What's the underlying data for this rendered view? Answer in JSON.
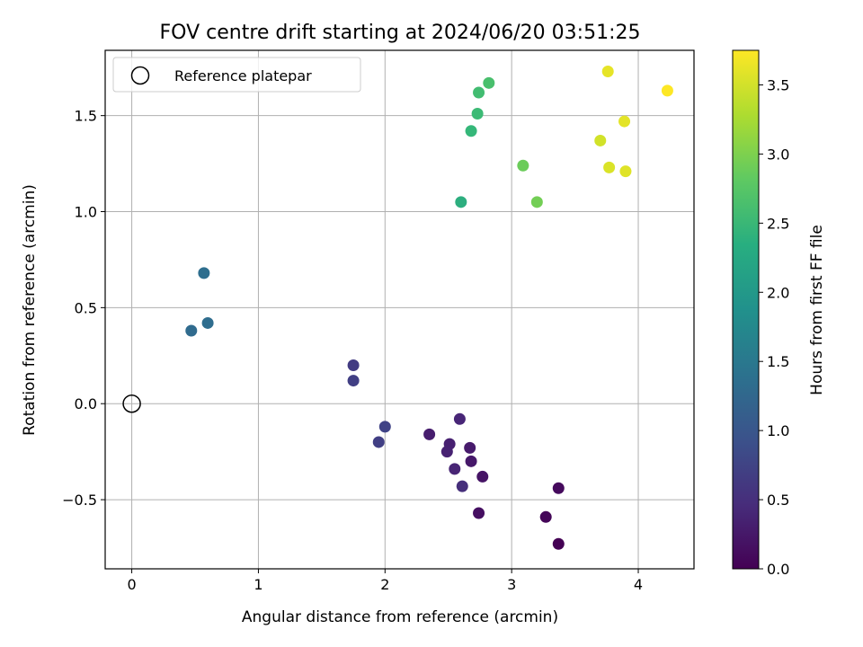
{
  "chart_data": {
    "type": "scatter",
    "title": "FOV centre drift starting at 2024/06/20 03:51:25",
    "xlabel": "Angular distance from reference (arcmin)",
    "ylabel": "Rotation from reference (arcmin)",
    "xlim": [
      -0.21,
      4.44
    ],
    "ylim": [
      -0.86,
      1.84
    ],
    "x_ticks": [
      0,
      1,
      2,
      3,
      4
    ],
    "x_tick_labels": [
      "0",
      "1",
      "2",
      "3",
      "4"
    ],
    "y_ticks": [
      -0.5,
      0.0,
      0.5,
      1.0,
      1.5
    ],
    "y_tick_labels": [
      "−0.5",
      "0.0",
      "0.5",
      "1.0",
      "1.5"
    ],
    "grid": true,
    "legend_position": "top-left",
    "legend": {
      "label": "Reference platepar",
      "marker": "open-circle"
    },
    "reference_point": {
      "x": 0.0,
      "y": 0.0
    },
    "colorbar": {
      "label": "Hours from first FF file",
      "colormap": "viridis",
      "range": [
        0.0,
        3.75
      ],
      "ticks": [
        0.0,
        0.5,
        1.0,
        1.5,
        2.0,
        2.5,
        3.0,
        3.5
      ],
      "tick_labels": [
        "0.0",
        "0.5",
        "1.0",
        "1.5",
        "2.0",
        "2.5",
        "3.0",
        "3.5"
      ]
    },
    "points": [
      {
        "x": 3.37,
        "y": -0.73,
        "c": 0.0
      },
      {
        "x": 3.27,
        "y": -0.59,
        "c": 0.05
      },
      {
        "x": 3.37,
        "y": -0.44,
        "c": 0.1
      },
      {
        "x": 2.74,
        "y": -0.57,
        "c": 0.15
      },
      {
        "x": 2.77,
        "y": -0.38,
        "c": 0.2
      },
      {
        "x": 2.68,
        "y": -0.3,
        "c": 0.25
      },
      {
        "x": 2.67,
        "y": -0.23,
        "c": 0.28
      },
      {
        "x": 2.35,
        "y": -0.16,
        "c": 0.3
      },
      {
        "x": 2.51,
        "y": -0.21,
        "c": 0.33
      },
      {
        "x": 2.49,
        "y": -0.25,
        "c": 0.35
      },
      {
        "x": 2.55,
        "y": -0.34,
        "c": 0.38
      },
      {
        "x": 2.59,
        "y": -0.08,
        "c": 0.4
      },
      {
        "x": 2.61,
        "y": -0.43,
        "c": 0.5
      },
      {
        "x": 2.0,
        "y": -0.12,
        "c": 0.75
      },
      {
        "x": 1.95,
        "y": -0.2,
        "c": 0.7
      },
      {
        "x": 1.75,
        "y": 0.2,
        "c": 0.65
      },
      {
        "x": 1.75,
        "y": 0.12,
        "c": 0.7
      },
      {
        "x": 0.47,
        "y": 0.38,
        "c": 1.3
      },
      {
        "x": 0.6,
        "y": 0.42,
        "c": 1.33
      },
      {
        "x": 0.57,
        "y": 0.68,
        "c": 1.35
      },
      {
        "x": 2.6,
        "y": 1.05,
        "c": 2.35
      },
      {
        "x": 2.68,
        "y": 1.42,
        "c": 2.5
      },
      {
        "x": 2.73,
        "y": 1.51,
        "c": 2.55
      },
      {
        "x": 2.74,
        "y": 1.62,
        "c": 2.6
      },
      {
        "x": 2.82,
        "y": 1.67,
        "c": 2.65
      },
      {
        "x": 3.09,
        "y": 1.24,
        "c": 2.9
      },
      {
        "x": 3.2,
        "y": 1.05,
        "c": 2.95
      },
      {
        "x": 3.7,
        "y": 1.37,
        "c": 3.5
      },
      {
        "x": 3.77,
        "y": 1.23,
        "c": 3.55
      },
      {
        "x": 3.9,
        "y": 1.21,
        "c": 3.58
      },
      {
        "x": 3.89,
        "y": 1.47,
        "c": 3.6
      },
      {
        "x": 3.76,
        "y": 1.73,
        "c": 3.62
      },
      {
        "x": 4.23,
        "y": 1.63,
        "c": 3.75
      }
    ]
  }
}
